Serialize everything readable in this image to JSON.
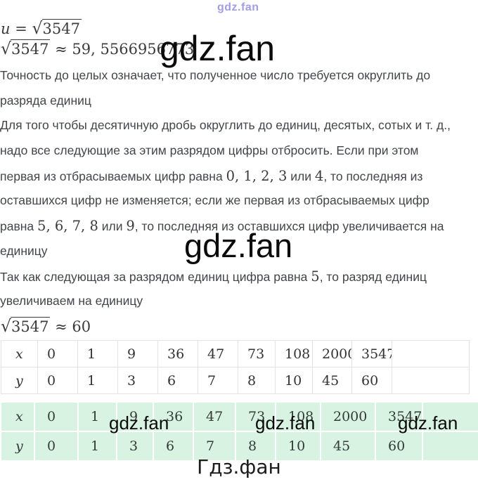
{
  "watermarks": {
    "top_small": "gdz.fan",
    "inline_large": "gdz.fan",
    "middle_large": "gdz.fan",
    "table_row": [
      "gdz.fan",
      "gdz.fan",
      "gdz.fan"
    ],
    "footer": "Гдз.фан"
  },
  "colors": {
    "highlight_green": "#d9f3e3",
    "watermark_purple": "#a19ee8",
    "body_text": "#42454a"
  },
  "formulas": {
    "line1": {
      "lhs": "u",
      "rel": "=",
      "root": "√",
      "radicand": "3547"
    },
    "line2": {
      "root": "√",
      "radicand": "3547",
      "rel": "≈",
      "value": "59, 5566956773"
    },
    "line3": {
      "root": "√",
      "radicand": "3547",
      "rel": "≈",
      "value": "60"
    }
  },
  "text_block": {
    "lines": [
      {
        "segments": [
          {
            "t": "Точность до целых означает, что полученное число требуется округлить до",
            "style": "sans"
          }
        ]
      },
      {
        "segments": [
          {
            "t": "разряда единиц",
            "style": "sans"
          }
        ]
      },
      {
        "segments": [
          {
            "t": "Для того чтобы десятичную дробь округлить до единиц, десятых, сотых и т. д.,",
            "style": "sans"
          }
        ]
      },
      {
        "segments": [
          {
            "t": "надо все следующие за этим разрядом цифры отбросить. Если при этом",
            "style": "sans"
          }
        ]
      },
      {
        "segments": [
          {
            "t": "первая из отбрасываемых цифр равна ",
            "style": "sans"
          },
          {
            "t": "0, 1, 2, 3",
            "style": "math"
          },
          {
            "t": " или ",
            "style": "sans"
          },
          {
            "t": "4",
            "style": "math"
          },
          {
            "t": ", то последняя из",
            "style": "sans"
          }
        ]
      },
      {
        "segments": [
          {
            "t": "оставшихся цифр не изменяется; если же первая из отбрасываемых цифр",
            "style": "sans"
          }
        ]
      },
      {
        "segments": [
          {
            "t": "равна ",
            "style": "sans"
          },
          {
            "t": "5, 6, 7, 8",
            "style": "math"
          },
          {
            "t": " или ",
            "style": "sans"
          },
          {
            "t": "9",
            "style": "math"
          },
          {
            "t": ", то последняя из оставшихся цифр увеличивается на",
            "style": "sans"
          }
        ]
      },
      {
        "segments": [
          {
            "t": "единицу",
            "style": "sans"
          }
        ]
      },
      {
        "segments": [
          {
            "t": "Так как следующая за разрядом единиц цифра равна ",
            "style": "sans"
          },
          {
            "t": "5",
            "style": "math"
          },
          {
            "t": ", то разряд единиц",
            "style": "sans"
          }
        ]
      },
      {
        "segments": [
          {
            "t": "увеличиваем на единицу",
            "style": "sans"
          }
        ]
      }
    ]
  },
  "tables": {
    "plain": {
      "rows": [
        {
          "label": "x",
          "values": [
            "0",
            "1",
            "9",
            "36",
            "47",
            "73",
            "108",
            "2000",
            "3547"
          ]
        },
        {
          "label": "y",
          "values": [
            "0",
            "1",
            "3",
            "6",
            "7",
            "8",
            "10",
            "45",
            "60"
          ]
        }
      ]
    },
    "highlighted": {
      "rows": [
        {
          "label": "x",
          "values": [
            "0",
            "1",
            "9",
            "36",
            "47",
            "73",
            "108",
            "2000",
            "3547"
          ]
        },
        {
          "label": "y",
          "values": [
            "0",
            "1",
            "3",
            "6",
            "7",
            "8",
            "10",
            "45",
            "60"
          ]
        }
      ]
    }
  }
}
